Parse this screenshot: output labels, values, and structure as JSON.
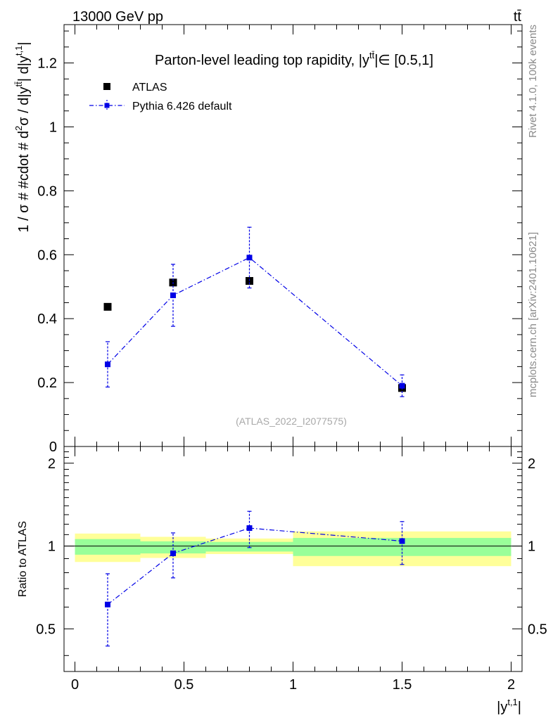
{
  "header": {
    "energy_label": "13000 GeV pp",
    "process_label": "tt̄"
  },
  "side_text": {
    "rivet_label": "Rivet 4.1.0,  100k events",
    "source_label": "mcplots.cern.ch [arXiv:2401.10621]"
  },
  "chart_data": [
    {
      "type": "scatter",
      "panel": "main",
      "title": "Parton-level leading top rapidity, |y^{tt̄}|∈ [0.5,1]",
      "title_text": "Parton-level leading top rapidity, |y",
      "title_sup": "tt̄",
      "title_suffix": "|∈ [0.5,1]",
      "watermark": "(ATLAS_2022_I2077575)",
      "ylabel": "1 / σ # #cdot # d²σ / d|y^{tt̄}| d|y^{t,1}|",
      "ylabel_parts": {
        "a": "1 / σ # #cdot # d",
        "sup1": "2",
        "b": "σ / d|y",
        "sup2": "tt̄",
        "c": "| d|y",
        "sup3": "t,1",
        "d": "|"
      },
      "xlim": [
        -0.05,
        2.05
      ],
      "ylim": [
        0,
        1.32
      ],
      "yticks": [
        0,
        0.2,
        0.4,
        0.6,
        0.8,
        1,
        1.2
      ],
      "ytick_labels": [
        "0",
        "0.2",
        "0.4",
        "0.6",
        "0.8",
        "1",
        "1.2"
      ],
      "legend_position": "top-left",
      "series": [
        {
          "name": "ATLAS",
          "color": "#000000",
          "x": [
            0.15,
            0.45,
            0.8,
            1.5
          ],
          "y": [
            0.437,
            0.513,
            0.518,
            0.183
          ],
          "y_err": [
            0.008,
            0.012,
            0.012,
            0.01
          ]
        },
        {
          "name": "Pythia 6.426 default",
          "color": "#0000e6",
          "line_style": "dash-dot",
          "x": [
            0.15,
            0.45,
            0.8,
            1.5
          ],
          "y": [
            0.257,
            0.473,
            0.591,
            0.19
          ],
          "y_err": [
            0.071,
            0.097,
            0.095,
            0.034
          ]
        }
      ]
    },
    {
      "type": "scatter",
      "panel": "ratio",
      "ylabel": "Ratio to ATLAS",
      "xlabel": "|y^{t,1}|",
      "xlabel_parts": {
        "a": "|y",
        "sup": "t,1",
        "b": "|"
      },
      "xlim": [
        -0.05,
        2.05
      ],
      "ylim": [
        0.35,
        2.3
      ],
      "xticks": [
        0,
        0.5,
        1,
        1.5,
        2
      ],
      "xtick_labels": [
        "0",
        "0.5",
        "1",
        "1.5",
        "2"
      ],
      "yticks": [
        0.5,
        1,
        2
      ],
      "ytick_labels": [
        "0.5",
        "1",
        "2"
      ],
      "reference_line": 1,
      "bands": [
        {
          "x_low": 0.0,
          "x_high": 0.3,
          "inner": [
            0.93,
            1.06
          ],
          "outer": [
            0.875,
            1.11
          ]
        },
        {
          "x_low": 0.3,
          "x_high": 0.6,
          "inner": [
            0.94,
            1.04
          ],
          "outer": [
            0.905,
            1.08
          ]
        },
        {
          "x_low": 0.6,
          "x_high": 1.0,
          "inner": [
            0.955,
            1.035
          ],
          "outer": [
            0.935,
            1.065
          ]
        },
        {
          "x_low": 1.0,
          "x_high": 2.0,
          "inner": [
            0.92,
            1.07
          ],
          "outer": [
            0.845,
            1.13
          ]
        }
      ],
      "series": [
        {
          "name": "Pythia 6.426 default",
          "color": "#0000e6",
          "x": [
            0.15,
            0.45,
            0.8,
            1.5
          ],
          "y": [
            0.613,
            0.941,
            1.162,
            1.042
          ],
          "y_err": [
            0.18,
            0.175,
            0.175,
            0.185
          ]
        }
      ]
    }
  ]
}
